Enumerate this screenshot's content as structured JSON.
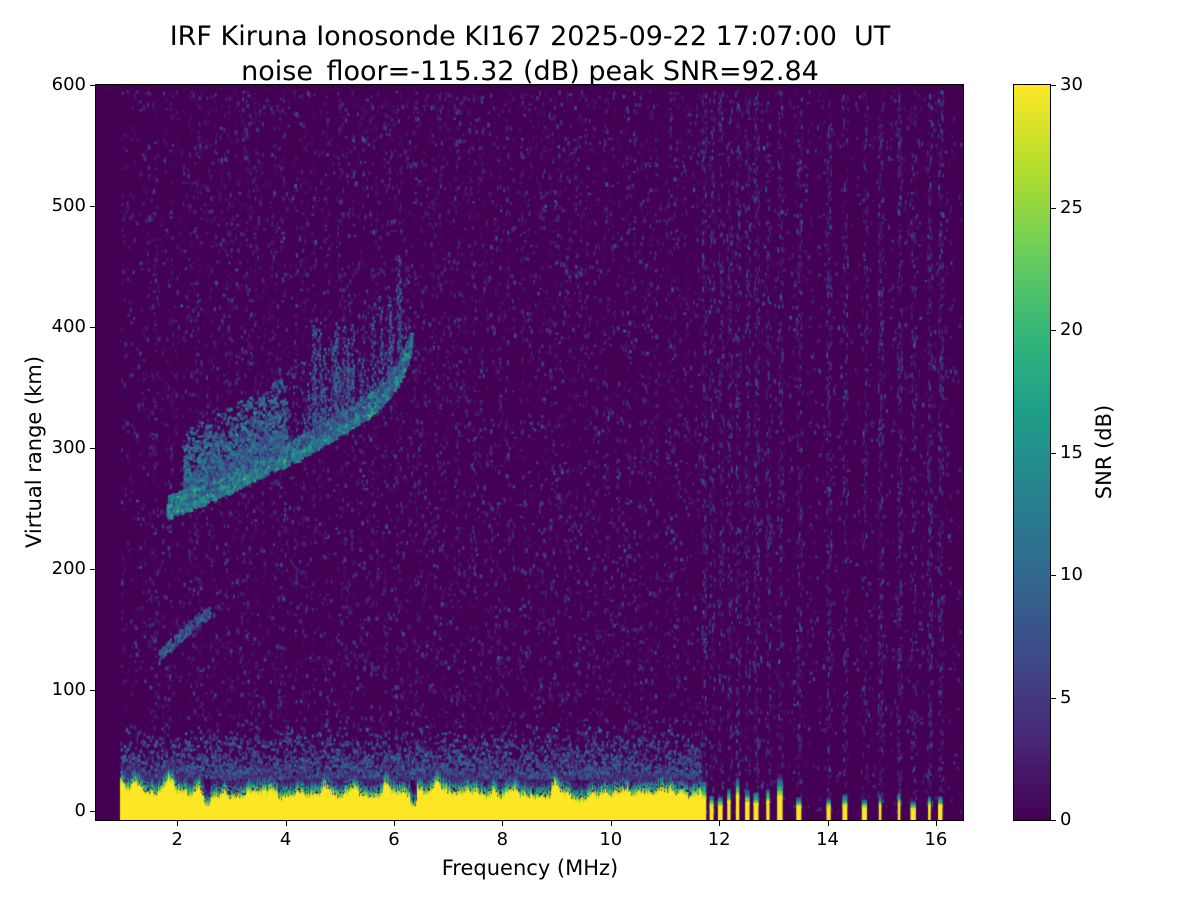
{
  "title": "IRF Kiruna Ionosonde KI167 2025-09-22 17:07:00  UT",
  "subtitle": "noise_floor=-115.32 (dB) peak SNR=92.84",
  "station": "KI167",
  "timestamp_ut": "2025-09-22 17:07:00",
  "chart_data": {
    "type": "heatmap",
    "title": "IRF Kiruna Ionosonde KI167 2025-09-22 17:07:00  UT",
    "subtitle": "noise_floor=-115.32 (dB) peak SNR=92.84",
    "xlabel": "Frequency (MHz)",
    "ylabel": "Virtual range (km)",
    "xlim": [
      0.5,
      16.5
    ],
    "ylim": [
      -7.5,
      600
    ],
    "x_ticks": [
      2,
      4,
      6,
      8,
      10,
      12,
      14,
      16
    ],
    "y_ticks": [
      0,
      100,
      200,
      300,
      400,
      500,
      600
    ],
    "grid": false,
    "noise_floor_db": -115.32,
    "peak_snr_db": 92.84,
    "colorbar": {
      "label": "SNR (dB)",
      "range": [
        0,
        30
      ],
      "ticks": [
        0,
        5,
        10,
        15,
        20,
        25,
        30
      ],
      "colormap": "viridis",
      "stops": [
        "#440154",
        "#482878",
        "#3e4a89",
        "#31688e",
        "#26828e",
        "#1f9e89",
        "#35b779",
        "#6ece58",
        "#b5de2b",
        "#fde725"
      ]
    },
    "features": {
      "description": "Ionogram heatmap: solid yellow ground-clutter band near 0-30 km across 1-11.6 MHz, F-region echo trace rising from ~250 km at 1.8 MHz to ~385 km at 6.3 MHz with spread echoes above, faint E-region trace near 130-165 km at 1.7-2.6 MHz, vertical RFI stripes with short yellow base spikes above 11.7 MHz, low-level blue speckle noise elsewhere",
      "background_snr_db": 0,
      "speckle_noise_max_db": 8,
      "data_freq_start": 0.95,
      "interference_region_start": 11.65,
      "ground_clutter": {
        "freq_start": 0.95,
        "freq_end": 11.65,
        "top_km_min": 14,
        "top_km_max": 34,
        "snr_db": 30,
        "gap_freqs": [
          2.55,
          6.35
        ]
      },
      "e_region_trace": {
        "points": [
          [
            1.65,
            128
          ],
          [
            2.0,
            144
          ],
          [
            2.3,
            156
          ],
          [
            2.6,
            166
          ]
        ],
        "snr_db": 9
      },
      "f_region_trace": {
        "points": [
          [
            1.8,
            252
          ],
          [
            2.4,
            262
          ],
          [
            3.0,
            274
          ],
          [
            3.6,
            288
          ],
          [
            4.2,
            300
          ],
          [
            4.8,
            316
          ],
          [
            5.4,
            332
          ],
          [
            5.8,
            347
          ],
          [
            6.1,
            364
          ],
          [
            6.3,
            388
          ]
        ],
        "snr_db": 15,
        "spread_km": 85
      },
      "interference_freqs": [
        11.72,
        11.86,
        12.02,
        12.18,
        12.34,
        12.52,
        12.68,
        12.9,
        13.12,
        13.47,
        14.02,
        14.32,
        14.68,
        14.97,
        15.32,
        15.58,
        15.88,
        16.08
      ]
    }
  }
}
